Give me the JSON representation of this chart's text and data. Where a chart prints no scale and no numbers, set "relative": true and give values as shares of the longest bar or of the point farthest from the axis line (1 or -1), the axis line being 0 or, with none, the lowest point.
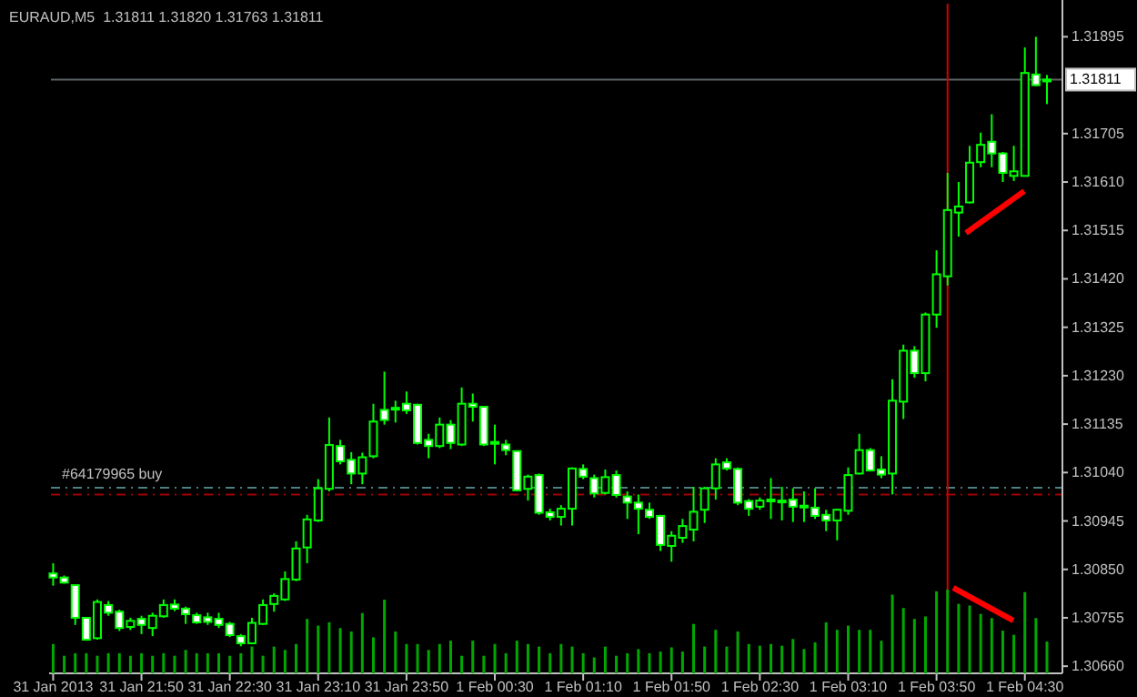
{
  "chart_data": [
    {
      "type": "candlestick",
      "title": "EURAUD,M5  1.31811 1.31820 1.31763 1.31811",
      "x": [
        "2013-01-31T21:10",
        "2013-01-31T21:15",
        "2013-01-31T21:20",
        "2013-01-31T21:25",
        "2013-01-31T21:30",
        "2013-01-31T21:35",
        "2013-01-31T21:40",
        "2013-01-31T21:45",
        "2013-01-31T21:50",
        "2013-01-31T21:55",
        "2013-01-31T22:00",
        "2013-01-31T22:05",
        "2013-01-31T22:10",
        "2013-01-31T22:15",
        "2013-01-31T22:20",
        "2013-01-31T22:25",
        "2013-01-31T22:30",
        "2013-01-31T22:35",
        "2013-01-31T22:40",
        "2013-01-31T22:45",
        "2013-01-31T22:50",
        "2013-01-31T22:55",
        "2013-01-31T23:00",
        "2013-01-31T23:05",
        "2013-01-31T23:10",
        "2013-01-31T23:15",
        "2013-01-31T23:20",
        "2013-01-31T23:25",
        "2013-01-31T23:30",
        "2013-01-31T23:35",
        "2013-01-31T23:40",
        "2013-01-31T23:45",
        "2013-01-31T23:50",
        "2013-01-31T23:55",
        "2013-02-01T00:00",
        "2013-02-01T00:05",
        "2013-02-01T00:10",
        "2013-02-01T00:15",
        "2013-02-01T00:20",
        "2013-02-01T00:25",
        "2013-02-01T00:30",
        "2013-02-01T00:35",
        "2013-02-01T00:40",
        "2013-02-01T00:45",
        "2013-02-01T00:50",
        "2013-02-01T00:55",
        "2013-02-01T01:00",
        "2013-02-01T01:05",
        "2013-02-01T01:10",
        "2013-02-01T01:15",
        "2013-02-01T01:20",
        "2013-02-01T01:25",
        "2013-02-01T01:30",
        "2013-02-01T01:35",
        "2013-02-01T01:40",
        "2013-02-01T01:45",
        "2013-02-01T01:50",
        "2013-02-01T01:55",
        "2013-02-01T02:00",
        "2013-02-01T02:05",
        "2013-02-01T02:10",
        "2013-02-01T02:15",
        "2013-02-01T02:20",
        "2013-02-01T02:25",
        "2013-02-01T02:30",
        "2013-02-01T02:35",
        "2013-02-01T02:40",
        "2013-02-01T02:45",
        "2013-02-01T02:50",
        "2013-02-01T02:55",
        "2013-02-01T03:00",
        "2013-02-01T03:05",
        "2013-02-01T03:10",
        "2013-02-01T03:15",
        "2013-02-01T03:20",
        "2013-02-01T03:25",
        "2013-02-01T03:30",
        "2013-02-01T03:35",
        "2013-02-01T03:40",
        "2013-02-01T03:45",
        "2013-02-01T03:50",
        "2013-02-01T03:55",
        "2013-02-01T04:00",
        "2013-02-01T04:05",
        "2013-02-01T04:10",
        "2013-02-01T04:15",
        "2013-02-01T04:20",
        "2013-02-01T04:25",
        "2013-02-01T04:30",
        "2013-02-01T04:35",
        "2013-02-01T04:40"
      ],
      "ohlc": [
        [
          1.30842,
          1.30862,
          1.30818,
          1.30834
        ],
        [
          1.30834,
          1.30838,
          1.30822,
          1.30824
        ],
        [
          1.30819,
          1.30819,
          1.30741,
          1.30755
        ],
        [
          1.30755,
          1.30755,
          1.3071,
          1.30712
        ],
        [
          1.30715,
          1.30791,
          1.30712,
          1.30786
        ],
        [
          1.3078,
          1.30788,
          1.30759,
          1.30765
        ],
        [
          1.30767,
          1.30771,
          1.30729,
          1.30735
        ],
        [
          1.30737,
          1.30755,
          1.30731,
          1.30749
        ],
        [
          1.30753,
          1.30759,
          1.30723,
          1.30741
        ],
        [
          1.30735,
          1.30765,
          1.30719,
          1.30759
        ],
        [
          1.30758,
          1.30791,
          1.30755,
          1.3078
        ],
        [
          1.30781,
          1.30791,
          1.30768,
          1.30773
        ],
        [
          1.30773,
          1.30777,
          1.30743,
          1.30762
        ],
        [
          1.3076,
          1.30765,
          1.30743,
          1.30746
        ],
        [
          1.30756,
          1.30765,
          1.30741,
          1.30747
        ],
        [
          1.30753,
          1.30765,
          1.30735,
          1.30741
        ],
        [
          1.30743,
          1.30747,
          1.30717,
          1.30721
        ],
        [
          1.30719,
          1.30723,
          1.30699,
          1.30705
        ],
        [
          1.30705,
          1.30755,
          1.30703,
          1.30745
        ],
        [
          1.30743,
          1.30791,
          1.30741,
          1.3078
        ],
        [
          1.30782,
          1.30803,
          1.30767,
          1.30798
        ],
        [
          1.30791,
          1.30846,
          1.30788,
          1.30831
        ],
        [
          1.3083,
          1.30905,
          1.30827,
          1.30891
        ],
        [
          1.30893,
          1.30957,
          1.30862,
          1.30948
        ],
        [
          1.30946,
          1.31027,
          1.30943,
          1.31009
        ],
        [
          1.31008,
          1.31148,
          1.31003,
          1.31094
        ],
        [
          1.31092,
          1.31104,
          1.31056,
          1.31062
        ],
        [
          1.31065,
          1.3108,
          1.31017,
          1.31038
        ],
        [
          1.31038,
          1.31079,
          1.31017,
          1.3107
        ],
        [
          1.31072,
          1.31175,
          1.31068,
          1.3114
        ],
        [
          1.31163,
          1.31238,
          1.31134,
          1.31143
        ],
        [
          1.31164,
          1.31181,
          1.31138,
          1.31167
        ],
        [
          1.31175,
          1.31199,
          1.31155,
          1.31162
        ],
        [
          1.31173,
          1.31175,
          1.31095,
          1.31098
        ],
        [
          1.31104,
          1.31116,
          1.31068,
          1.31092
        ],
        [
          1.31092,
          1.31148,
          1.31088,
          1.31134
        ],
        [
          1.31134,
          1.31143,
          1.31086,
          1.31098
        ],
        [
          1.31095,
          1.31207,
          1.31092,
          1.31175
        ],
        [
          1.31175,
          1.31195,
          1.3114,
          1.31169
        ],
        [
          1.31169,
          1.31169,
          1.31092,
          1.31095
        ],
        [
          1.31098,
          1.31134,
          1.31056,
          1.311
        ],
        [
          1.31095,
          1.31104,
          1.31074,
          1.31084
        ],
        [
          1.31082,
          1.31082,
          1.31003,
          1.31005
        ],
        [
          1.31008,
          1.31036,
          1.30985,
          1.31032
        ],
        [
          1.31035,
          1.31038,
          1.30957,
          1.30961
        ],
        [
          1.30962,
          1.30969,
          1.30946,
          1.30953
        ],
        [
          1.30953,
          1.30976,
          1.30936,
          1.30969
        ],
        [
          1.30969,
          1.3105,
          1.30936,
          1.31048
        ],
        [
          1.31047,
          1.31056,
          1.31027,
          1.31032
        ],
        [
          1.31029,
          1.31036,
          1.30991,
          1.30999
        ],
        [
          1.31,
          1.31046,
          1.30997,
          1.31031
        ],
        [
          1.31035,
          1.31044,
          1.30991,
          1.30996
        ],
        [
          1.30993,
          1.31003,
          1.30949,
          1.30981
        ],
        [
          1.30981,
          1.30997,
          1.30919,
          1.30969
        ],
        [
          1.30967,
          1.30981,
          1.30949,
          1.30953
        ],
        [
          1.30955,
          1.30957,
          1.30886,
          1.30898
        ],
        [
          1.30896,
          1.30925,
          1.30865,
          1.30916
        ],
        [
          1.30912,
          1.30949,
          1.30902,
          1.30935
        ],
        [
          1.30928,
          1.31012,
          1.30905,
          1.30963
        ],
        [
          1.30967,
          1.31012,
          1.30941,
          1.31009
        ],
        [
          1.31009,
          1.31068,
          1.30987,
          1.31056
        ],
        [
          1.3106,
          1.31068,
          1.31044,
          1.31048
        ],
        [
          1.31047,
          1.3105,
          1.30976,
          1.30981
        ],
        [
          1.30984,
          1.30988,
          1.30955,
          1.30969
        ],
        [
          1.30973,
          1.30991,
          1.30967,
          1.30985
        ],
        [
          1.30985,
          1.31029,
          1.30949,
          1.30987
        ],
        [
          1.30982,
          1.31012,
          1.30946,
          1.30985
        ],
        [
          1.30987,
          1.31009,
          1.30943,
          1.30973
        ],
        [
          1.30975,
          1.31003,
          1.30943,
          1.30973
        ],
        [
          1.30971,
          1.31009,
          1.30949,
          1.30955
        ],
        [
          1.30957,
          1.30967,
          1.30925,
          1.30946
        ],
        [
          1.30946,
          1.30969,
          1.30907,
          1.30967
        ],
        [
          1.30965,
          1.3105,
          1.30957,
          1.31035
        ],
        [
          1.31038,
          1.31116,
          1.31036,
          1.31084
        ],
        [
          1.31084,
          1.31088,
          1.31042,
          1.31044
        ],
        [
          1.31046,
          1.31072,
          1.31029,
          1.31036
        ],
        [
          1.31038,
          1.31223,
          1.30997,
          1.31181
        ],
        [
          1.31179,
          1.31291,
          1.31145,
          1.31279
        ],
        [
          1.31279,
          1.31288,
          1.31226,
          1.31235
        ],
        [
          1.31235,
          1.31354,
          1.31219,
          1.3135
        ],
        [
          1.3135,
          1.31476,
          1.31324,
          1.31429
        ],
        [
          1.31425,
          1.31628,
          1.31407,
          1.31555
        ],
        [
          1.3155,
          1.3161,
          1.31503,
          1.31562
        ],
        [
          1.3157,
          1.31681,
          1.31568,
          1.31648
        ],
        [
          1.31649,
          1.31707,
          1.31639,
          1.31683
        ],
        [
          1.31689,
          1.31743,
          1.31639,
          1.31666
        ],
        [
          1.31666,
          1.31669,
          1.3161,
          1.31628
        ],
        [
          1.31622,
          1.31681,
          1.31612,
          1.31631
        ],
        [
          1.31622,
          1.31874,
          1.31622,
          1.31824
        ],
        [
          1.31821,
          1.31895,
          1.31798,
          1.318
        ],
        [
          1.31811,
          1.3182,
          1.31763,
          1.31811
        ]
      ],
      "xlim": [
        "2013-01-31T21:09",
        "2013-02-01T04:47"
      ],
      "ylim": [
        1.30646,
        1.3196
      ],
      "xticks": [
        {
          "value": "2013-01-31T21:10",
          "label": "31 Jan 2013"
        },
        {
          "value": "2013-01-31T21:50",
          "label": "31 Jan 21:50"
        },
        {
          "value": "2013-01-31T22:30",
          "label": "31 Jan 22:30"
        },
        {
          "value": "2013-01-31T23:10",
          "label": "31 Jan 23:10"
        },
        {
          "value": "2013-01-31T23:50",
          "label": "31 Jan 23:50"
        },
        {
          "value": "2013-02-01T00:30",
          "label": "1 Feb 00:30"
        },
        {
          "value": "2013-02-01T01:10",
          "label": "1 Feb 01:10"
        },
        {
          "value": "2013-02-01T01:50",
          "label": "1 Feb 01:50"
        },
        {
          "value": "2013-02-01T02:30",
          "label": "1 Feb 02:30"
        },
        {
          "value": "2013-02-01T03:10",
          "label": "1 Feb 03:10"
        },
        {
          "value": "2013-02-01T03:50",
          "label": "1 Feb 03:50"
        },
        {
          "value": "2013-02-01T04:30",
          "label": "1 Feb 04:30"
        }
      ],
      "yticks": [
        {
          "value": 1.3066,
          "label": "1.30660"
        },
        1.30755,
        {
          "value": 1.3085,
          "label": "1.30850"
        },
        1.30945,
        {
          "value": 1.3104,
          "label": "1.31040"
        },
        1.31135,
        {
          "value": 1.3123,
          "label": "1.31230"
        },
        1.31325,
        {
          "value": 1.3142,
          "label": "1.31420"
        },
        1.31515,
        {
          "value": 1.3161,
          "label": "1.31610"
        },
        1.31705,
        1.31895
      ],
      "ref_lines": [
        {
          "axis": "y",
          "value": 1.31811,
          "label": "1.31811",
          "color": "#5c6266",
          "line_style": "solid"
        },
        {
          "axis": "y",
          "value": 1.3101,
          "label": "#64179965 buy",
          "color": "#4f7f80",
          "line_style": "dashed"
        },
        {
          "axis": "y",
          "value": 1.30997,
          "color": "#a00000",
          "line_style": "dashed"
        },
        {
          "axis": "x",
          "value": "2013-02-01T03:55",
          "color": "#d00000",
          "line_style": "solid"
        }
      ]
    },
    {
      "type": "bar",
      "relative": true,
      "color": "#00a800",
      "tick_labels": false,
      "xlim": [
        "2013-01-31T21:09",
        "2013-02-01T04:47"
      ],
      "x": [
        "2013-01-31T21:10",
        "2013-01-31T21:15",
        "2013-01-31T21:20",
        "2013-01-31T21:25",
        "2013-01-31T21:30",
        "2013-01-31T21:35",
        "2013-01-31T21:40",
        "2013-01-31T21:45",
        "2013-01-31T21:50",
        "2013-01-31T21:55",
        "2013-01-31T22:00",
        "2013-01-31T22:05",
        "2013-01-31T22:10",
        "2013-01-31T22:15",
        "2013-01-31T22:20",
        "2013-01-31T22:25",
        "2013-01-31T22:30",
        "2013-01-31T22:35",
        "2013-01-31T22:40",
        "2013-01-31T22:45",
        "2013-01-31T22:50",
        "2013-01-31T22:55",
        "2013-01-31T23:00",
        "2013-01-31T23:05",
        "2013-01-31T23:10",
        "2013-01-31T23:15",
        "2013-01-31T23:20",
        "2013-01-31T23:25",
        "2013-01-31T23:30",
        "2013-01-31T23:35",
        "2013-01-31T23:40",
        "2013-01-31T23:45",
        "2013-01-31T23:50",
        "2013-01-31T23:55",
        "2013-02-01T00:00",
        "2013-02-01T00:05",
        "2013-02-01T00:10",
        "2013-02-01T00:15",
        "2013-02-01T00:20",
        "2013-02-01T00:25",
        "2013-02-01T00:30",
        "2013-02-01T00:35",
        "2013-02-01T00:40",
        "2013-02-01T00:45",
        "2013-02-01T00:50",
        "2013-02-01T00:55",
        "2013-02-01T01:00",
        "2013-02-01T01:05",
        "2013-02-01T01:10",
        "2013-02-01T01:15",
        "2013-02-01T01:20",
        "2013-02-01T01:25",
        "2013-02-01T01:30",
        "2013-02-01T01:35",
        "2013-02-01T01:40",
        "2013-02-01T01:45",
        "2013-02-01T01:50",
        "2013-02-01T01:55",
        "2013-02-01T02:00",
        "2013-02-01T02:05",
        "2013-02-01T02:10",
        "2013-02-01T02:15",
        "2013-02-01T02:20",
        "2013-02-01T02:25",
        "2013-02-01T02:30",
        "2013-02-01T02:35",
        "2013-02-01T02:40",
        "2013-02-01T02:45",
        "2013-02-01T02:50",
        "2013-02-01T02:55",
        "2013-02-01T03:00",
        "2013-02-01T03:05",
        "2013-02-01T03:10",
        "2013-02-01T03:15",
        "2013-02-01T03:20",
        "2013-02-01T03:25",
        "2013-02-01T03:30",
        "2013-02-01T03:35",
        "2013-02-01T03:40",
        "2013-02-01T03:45",
        "2013-02-01T03:50",
        "2013-02-01T03:55",
        "2013-02-01T04:00",
        "2013-02-01T04:05",
        "2013-02-01T04:10",
        "2013-02-01T04:15",
        "2013-02-01T04:20",
        "2013-02-01T04:25",
        "2013-02-01T04:30",
        "2013-02-01T04:35",
        "2013-02-01T04:40"
      ],
      "values": [
        0.35,
        0.21,
        0.24,
        0.24,
        0.21,
        0.24,
        0.24,
        0.21,
        0.24,
        0.21,
        0.24,
        0.21,
        0.28,
        0.24,
        0.24,
        0.24,
        0.21,
        0.24,
        0.32,
        0.21,
        0.32,
        0.28,
        0.35,
        0.65,
        0.57,
        0.61,
        0.54,
        0.5,
        0.72,
        0.43,
        0.88,
        0.5,
        0.35,
        0.35,
        0.28,
        0.35,
        0.39,
        0.21,
        0.39,
        0.21,
        0.35,
        0.24,
        0.39,
        0.35,
        0.32,
        0.24,
        0.35,
        0.32,
        0.24,
        0.19,
        0.32,
        0.21,
        0.24,
        0.29,
        0.24,
        0.26,
        0.31,
        0.26,
        0.59,
        0.32,
        0.52,
        0.32,
        0.5,
        0.35,
        0.33,
        0.35,
        0.33,
        0.41,
        0.29,
        0.37,
        0.61,
        0.52,
        0.57,
        0.52,
        0.52,
        0.39,
        0.94,
        0.78,
        0.65,
        0.68,
        0.98,
        1,
        0.83,
        0.81,
        0.71,
        0.66,
        0.51,
        0.46,
        0.97,
        0.66,
        0.38
      ]
    }
  ]
}
